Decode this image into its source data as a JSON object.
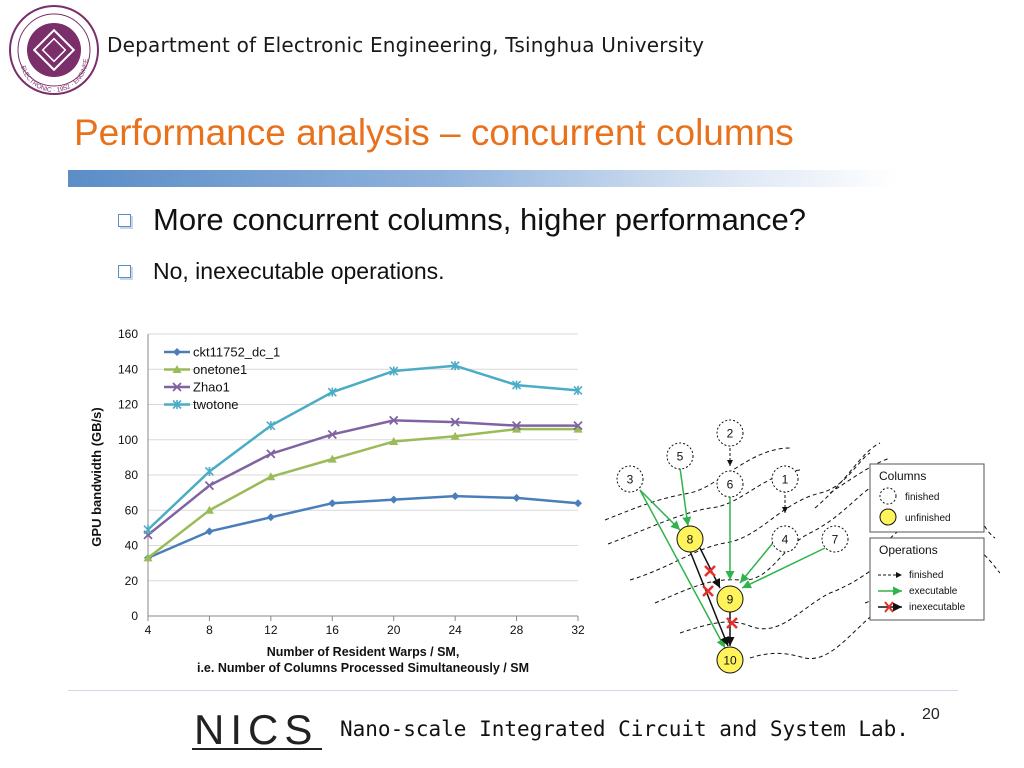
{
  "header": {
    "department": "Department of Electronic Engineering, Tsinghua University",
    "logo_text": "ELECTRONIC · 1952 · ENGINEERING"
  },
  "slide": {
    "title": "Performance analysis – concurrent columns",
    "bullets": [
      "More concurrent columns, higher performance?",
      "No, inexecutable operations."
    ],
    "page_number": "20"
  },
  "footer": {
    "lab_name": "Nano-scale Integrated Circuit and System Lab.",
    "logo_text": "NICS"
  },
  "chart_data": {
    "type": "line",
    "ylabel": "GPU bandwidth (GB/s)",
    "xlabel_line1": "Number of Resident Warps / SM,",
    "xlabel_line2": "i.e. Number of Columns Processed Simultaneously / SM",
    "x": [
      4,
      8,
      12,
      16,
      20,
      24,
      28,
      32
    ],
    "x_ticks": [
      "4",
      "8",
      "12",
      "16",
      "20",
      "24",
      "28",
      "32"
    ],
    "y_ticks": [
      "0",
      "20",
      "40",
      "60",
      "80",
      "100",
      "120",
      "140",
      "160"
    ],
    "ylim": [
      0,
      160
    ],
    "grid": "horizontal",
    "legend_position": "top-left",
    "series": [
      {
        "name": "ckt11752_dc_1",
        "color": "#4a7ebb",
        "marker": "diamond",
        "values": [
          33,
          48,
          56,
          64,
          66,
          68,
          67,
          64
        ]
      },
      {
        "name": "onetone1",
        "color": "#9bbb59",
        "marker": "triangle",
        "values": [
          33,
          60,
          79,
          89,
          99,
          102,
          106,
          106
        ]
      },
      {
        "name": "Zhao1",
        "color": "#8064a2",
        "marker": "x",
        "values": [
          46,
          74,
          92,
          103,
          111,
          110,
          108,
          108
        ]
      },
      {
        "name": "twotone",
        "color": "#4bacc6",
        "marker": "star",
        "values": [
          49,
          82,
          108,
          127,
          139,
          142,
          131,
          128
        ]
      }
    ]
  },
  "diagram": {
    "nodes": [
      {
        "id": "2",
        "state": "finished"
      },
      {
        "id": "5",
        "state": "finished"
      },
      {
        "id": "3",
        "state": "finished"
      },
      {
        "id": "6",
        "state": "finished"
      },
      {
        "id": "1",
        "state": "finished"
      },
      {
        "id": "8",
        "state": "unfinished"
      },
      {
        "id": "4",
        "state": "finished"
      },
      {
        "id": "7",
        "state": "finished"
      },
      {
        "id": "9",
        "state": "unfinished"
      },
      {
        "id": "10",
        "state": "unfinished"
      }
    ],
    "legend_columns": {
      "title": "Columns",
      "finished": "finished",
      "unfinished": "unfinished"
    },
    "legend_operations": {
      "title": "Operations",
      "finished": "finished",
      "executable": "executable",
      "inexecutable": "inexecutable"
    },
    "colors": {
      "unfinished_fill": "#fff35c",
      "executable": "#2fb34a",
      "inexecutable": "#e8302a"
    }
  }
}
